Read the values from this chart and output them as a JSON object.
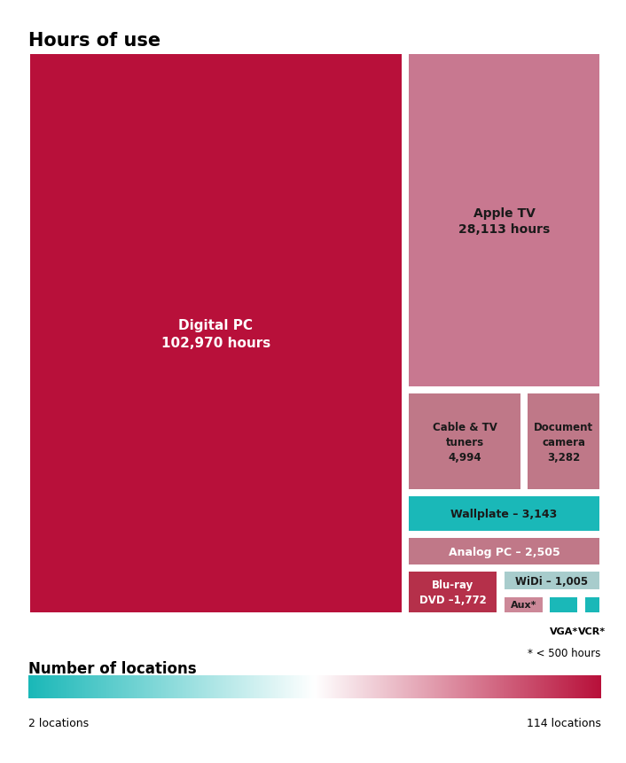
{
  "title": "Hours of use",
  "background_color": "#ffffff",
  "title_fontsize": 15,
  "items": [
    {
      "name": "Digital PC",
      "label": "Digital PC\n102,970 hours",
      "color": "#b8103a",
      "text_color": "#ffffff"
    },
    {
      "name": "Apple TV",
      "label": "Apple TV\n28,113 hours",
      "color": "#c87890",
      "text_color": "#1a1a1a"
    },
    {
      "name": "Cable & TV tuners",
      "label": "Cable & TV\ntuners\n4,994",
      "color": "#bf7888",
      "text_color": "#1a1a1a"
    },
    {
      "name": "Document camera",
      "label": "Document\ncamera\n3,282",
      "color": "#bf7888",
      "text_color": "#1a1a1a"
    },
    {
      "name": "Wallplate",
      "label": "Wallplate – 3,143",
      "color": "#1ab8b8",
      "text_color": "#1a1a1a"
    },
    {
      "name": "Analog PC",
      "label": "Analog PC – 2,505",
      "color": "#c07888",
      "text_color": "#ffffff"
    },
    {
      "name": "Blu-ray DVD",
      "label": "Blu-ray\nDVD –1,772",
      "color": "#b5304a",
      "text_color": "#ffffff"
    },
    {
      "name": "WiDi",
      "label": "WiDi – 1,005",
      "color": "#a8cccc",
      "text_color": "#1a1a1a"
    },
    {
      "name": "Aux",
      "label": "Aux*",
      "color": "#cc8898",
      "text_color": "#1a1a1a"
    },
    {
      "name": "VGA",
      "label": "",
      "color": "#1ab8b8",
      "text_color": "#1a1a1a"
    },
    {
      "name": "VCR",
      "label": "",
      "color": "#1ab8b8",
      "text_color": "#1a1a1a"
    }
  ],
  "legend_label": "Number of locations",
  "legend_left": "2 locations",
  "legend_right": "114 locations",
  "footnote": "* < 500 hours",
  "vga_label": "VGA*",
  "vcr_label": "VCR*"
}
